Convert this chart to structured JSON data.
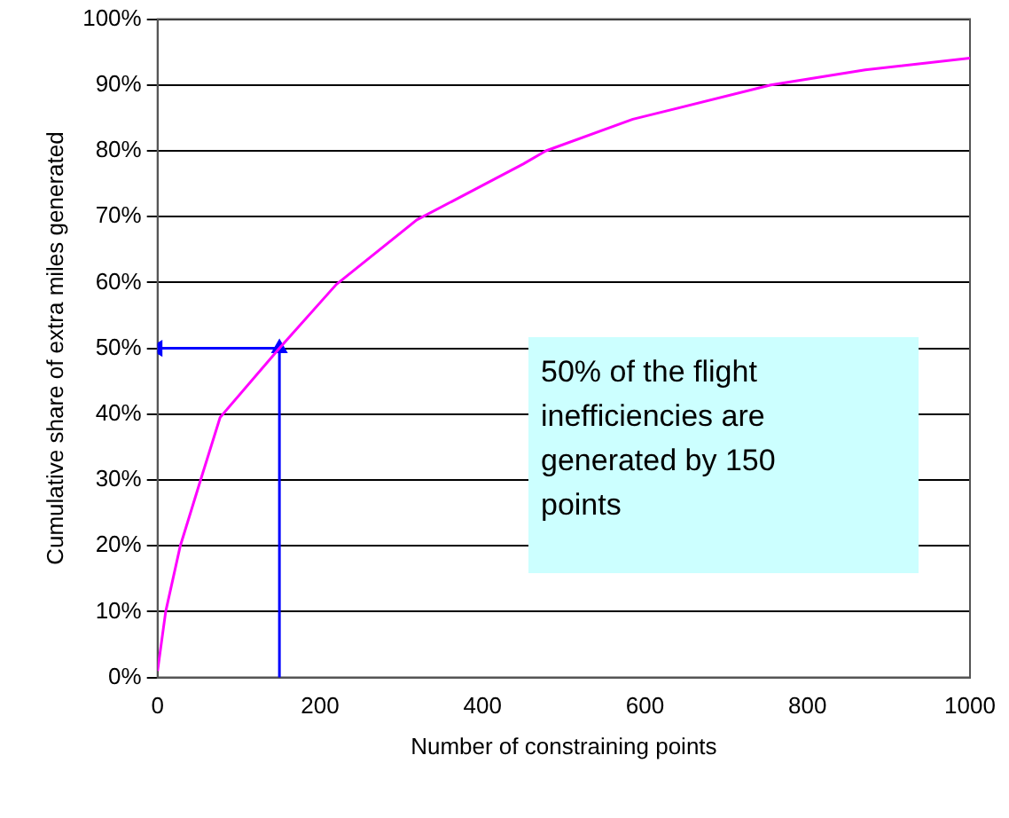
{
  "chart_data": {
    "type": "line",
    "xlabel": "Number of constraining points",
    "ylabel": "Cumulative share of extra miles generated",
    "xlim": [
      0,
      1000
    ],
    "xticks": [
      0,
      200,
      400,
      600,
      800,
      1000
    ],
    "ylim": [
      0,
      100
    ],
    "yticks": [
      {
        "value": 0,
        "label": "0%"
      },
      {
        "value": 10,
        "label": "10%"
      },
      {
        "value": 20,
        "label": "20%"
      },
      {
        "value": 30,
        "label": "30%"
      },
      {
        "value": 40,
        "label": "40%"
      },
      {
        "value": 50,
        "label": "50%"
      },
      {
        "value": 60,
        "label": "60%"
      },
      {
        "value": 70,
        "label": "70%"
      },
      {
        "value": 80,
        "label": "80%"
      },
      {
        "value": 90,
        "label": "90%"
      },
      {
        "value": 100,
        "label": "100%"
      }
    ],
    "grid": "y",
    "legend": false,
    "marker": "none",
    "line_style": "solid",
    "series": [
      {
        "color": "#ff00ff",
        "x": [
          0,
          10,
          28,
          53,
          77,
          150,
          220,
          319,
          450,
          478,
          585,
          755,
          871,
          1000
        ],
        "values": [
          1,
          10,
          20,
          30,
          39.5,
          50,
          59.7,
          69.5,
          78,
          80,
          84.8,
          90,
          92.3,
          94.1
        ]
      },
      {
        "color": "#0000ff",
        "marker": "triangle",
        "x": [
          0,
          150,
          150
        ],
        "values": [
          50,
          50,
          0
        ]
      }
    ],
    "annotations": [
      "50% of the flight inefficiencies are generated by 150 points"
    ]
  }
}
